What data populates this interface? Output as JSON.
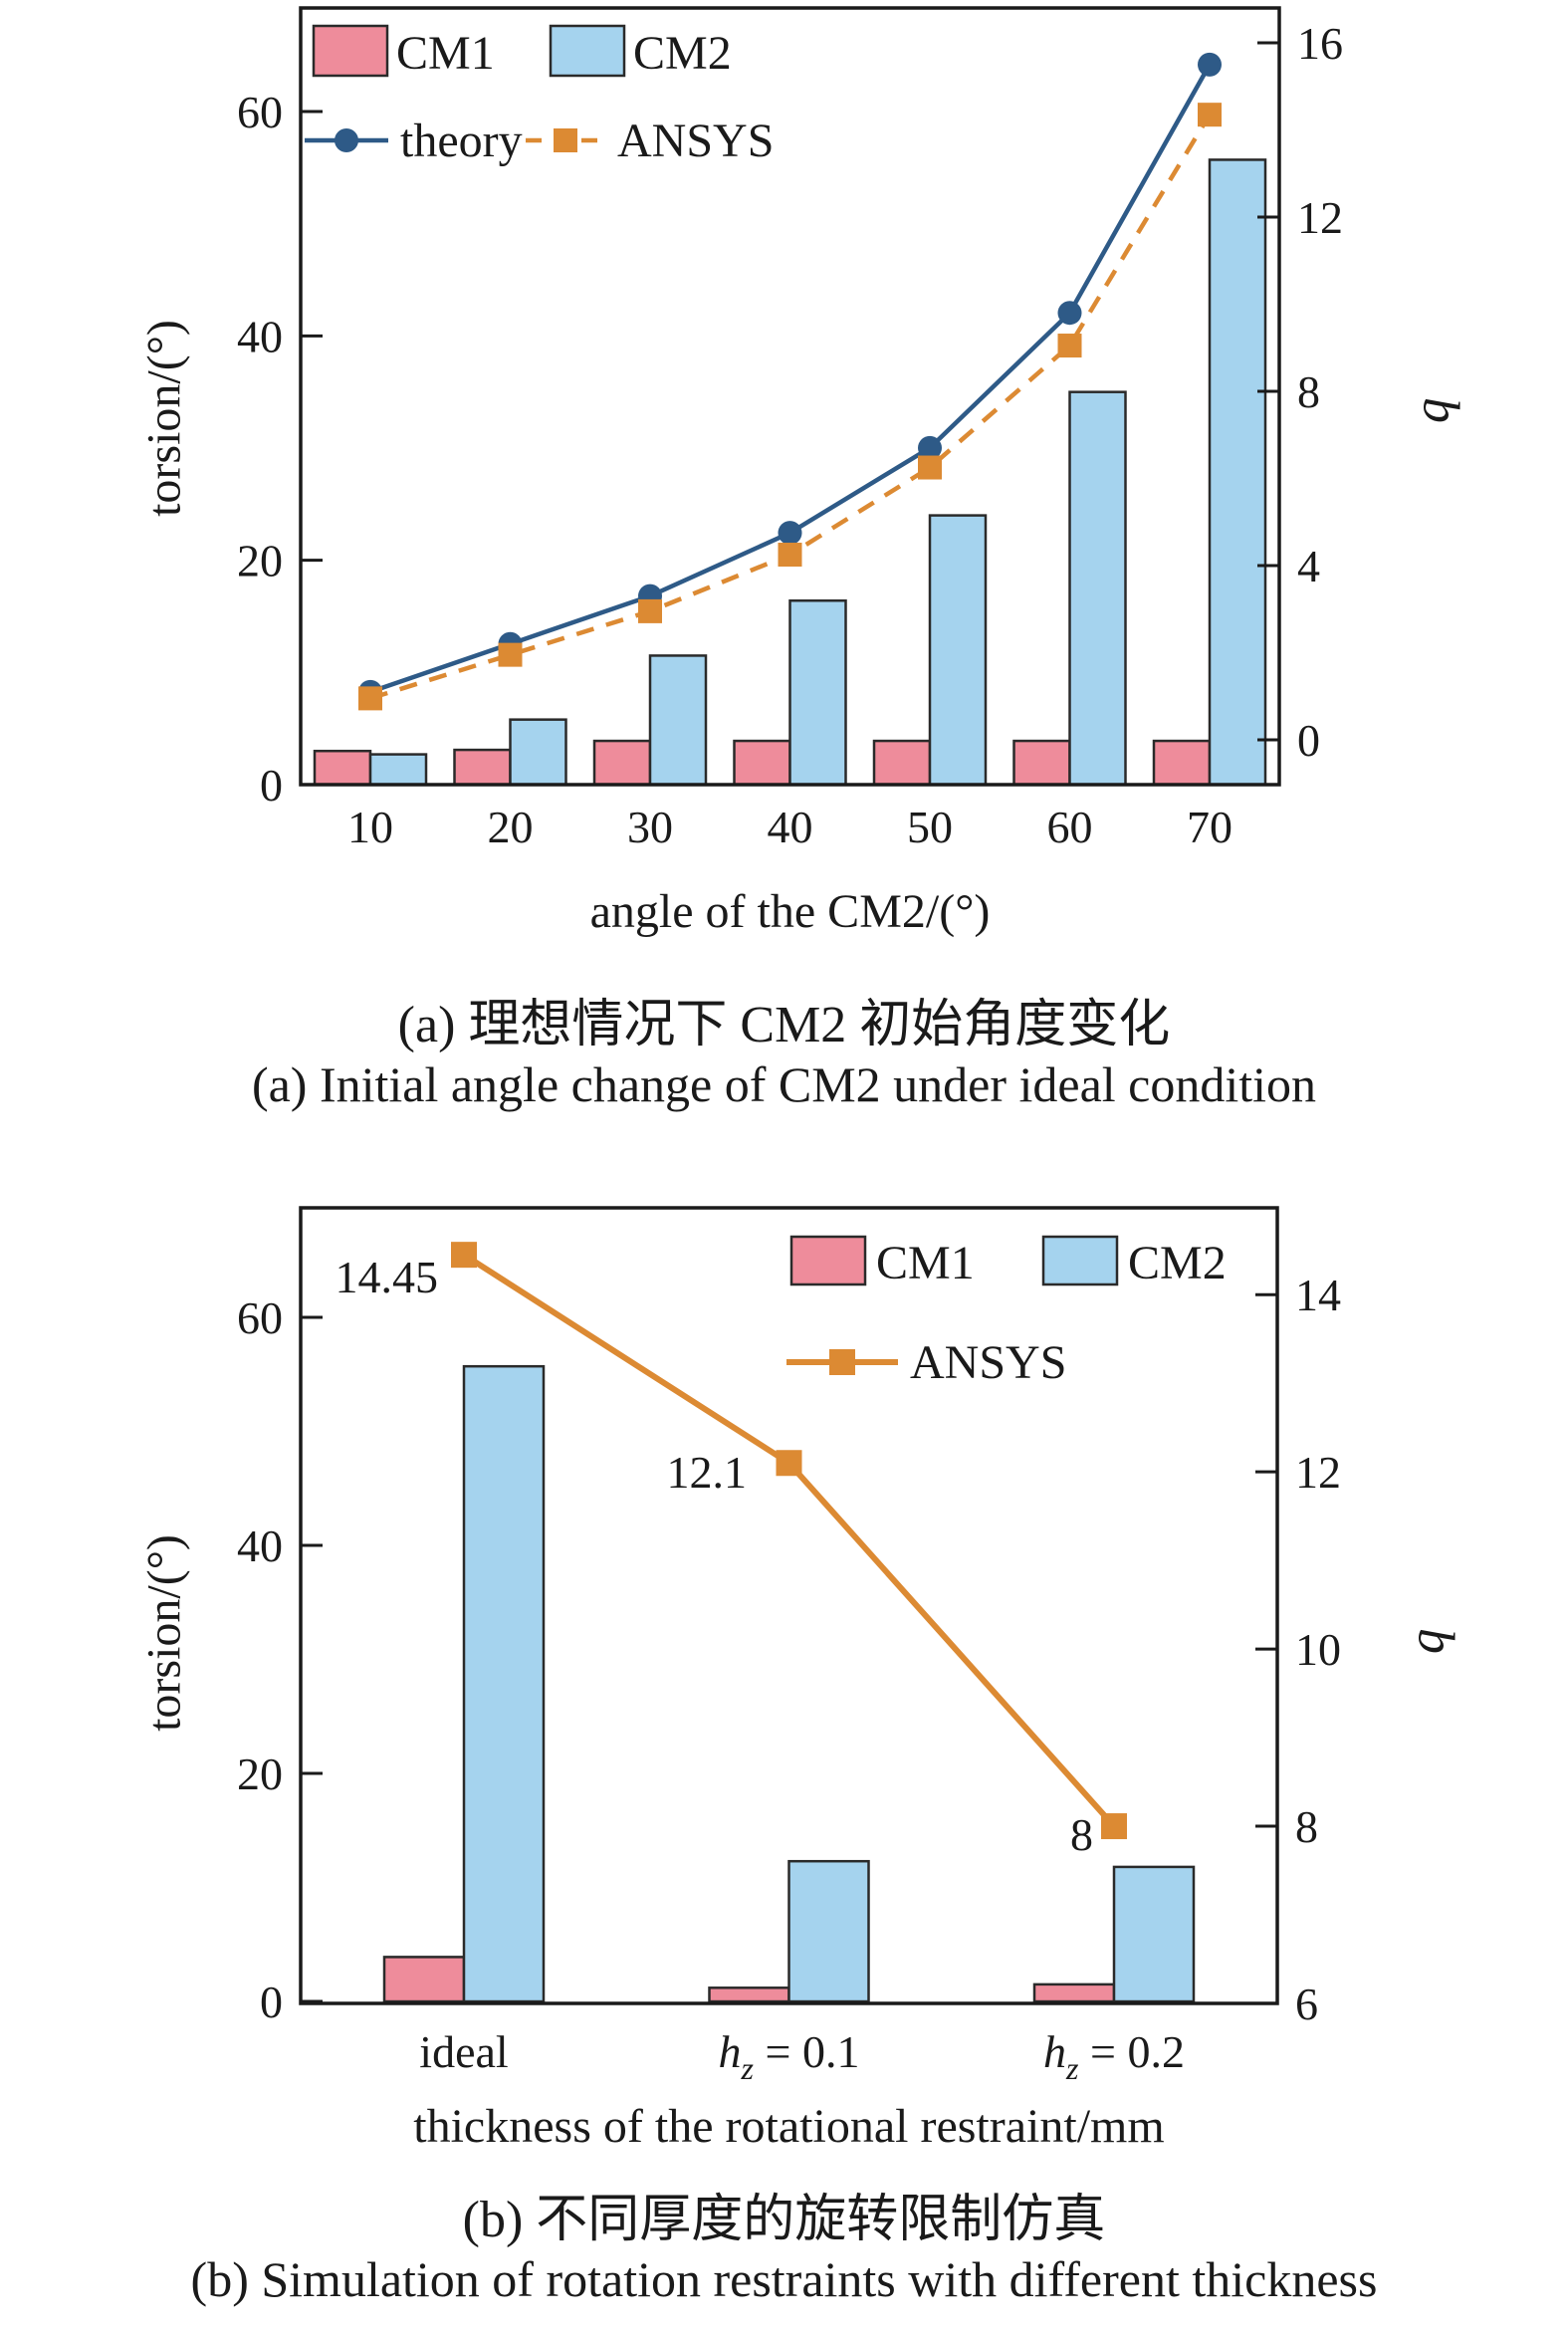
{
  "colors": {
    "cm1": "#EE8C9B",
    "cm2": "#A5D3EE",
    "theory": "#2E5A87",
    "ansys": "#DC8A33",
    "ink": "#1A1A1A",
    "background": "#FFFFFF"
  },
  "captions": {
    "a_cn": "(a) 理想情况下 CM2 初始角度变化",
    "a_en": "(a) Initial angle change of CM2 under ideal condition",
    "b_cn": "(b) 不同厚度的旋转限制仿真",
    "b_en": "(b) Simulation of rotation restraints with different thickness"
  },
  "chart_data": [
    {
      "id": "a",
      "type": "bar+line",
      "xlabel": "angle of the CM2/(°)",
      "ylabel_left": "torsion/(°)",
      "ylabel_right": "b",
      "categories": [
        "10",
        "20",
        "30",
        "40",
        "50",
        "60",
        "70"
      ],
      "left_axis": {
        "ticks": [
          0,
          20,
          40,
          60
        ],
        "range": [
          0,
          69.23
        ]
      },
      "right_axis": {
        "ticks": [
          0,
          4,
          8,
          12,
          16
        ],
        "range": [
          -1.03,
          16.8
        ]
      },
      "bar_series": [
        {
          "name": "CM1",
          "axis": "left",
          "color": "cm1",
          "values": [
            3.0,
            3.1,
            3.9,
            3.9,
            3.9,
            3.9,
            3.9
          ]
        },
        {
          "name": "CM2",
          "axis": "left",
          "color": "cm2",
          "values": [
            2.7,
            5.8,
            11.5,
            16.4,
            24.0,
            35.0,
            55.7
          ]
        }
      ],
      "line_series": [
        {
          "name": "theory",
          "axis": "right",
          "color": "theory",
          "style": "solid",
          "marker": "circle",
          "values": [
            1.1,
            2.2,
            3.3,
            4.75,
            6.7,
            9.8,
            15.5
          ]
        },
        {
          "name": "ANSYS",
          "axis": "right",
          "color": "ansys",
          "style": "dashed",
          "marker": "square",
          "values": [
            0.95,
            1.95,
            2.95,
            4.25,
            6.25,
            9.05,
            14.35
          ]
        }
      ],
      "legend": [
        "CM1",
        "CM2",
        "theory",
        "ANSYS"
      ]
    },
    {
      "id": "b",
      "type": "bar+line",
      "xlabel": "thickness of the rotational restraint/mm",
      "ylabel_left": "torsion/(°)",
      "ylabel_right": "b",
      "categories": [
        {
          "text": "ideal"
        },
        {
          "base": "h",
          "sub": "z",
          "rest": " = 0.1"
        },
        {
          "base": "h",
          "sub": "z",
          "rest": " = 0.2"
        }
      ],
      "left_axis": {
        "ticks": [
          0,
          20,
          40,
          60
        ],
        "range": [
          -0.17,
          69.6
        ]
      },
      "right_axis": {
        "ticks": [
          6,
          8,
          10,
          12,
          14
        ],
        "range": [
          6,
          14.98
        ]
      },
      "bar_series": [
        {
          "name": "CM1",
          "axis": "left",
          "color": "cm1",
          "values": [
            3.9,
            1.2,
            1.5
          ]
        },
        {
          "name": "CM2",
          "axis": "left",
          "color": "cm2",
          "values": [
            55.7,
            12.3,
            11.8
          ]
        }
      ],
      "line_series": [
        {
          "name": "ANSYS",
          "axis": "right",
          "color": "ansys",
          "style": "solid",
          "marker": "square",
          "values": [
            14.45,
            12.1,
            8
          ],
          "point_labels": [
            "14.45",
            "12.1",
            "8"
          ]
        }
      ],
      "legend": [
        "CM1",
        "CM2",
        "ANSYS"
      ]
    }
  ]
}
